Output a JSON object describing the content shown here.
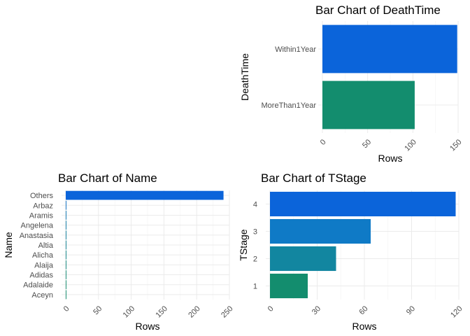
{
  "chart_data": [
    {
      "type": "bar",
      "orientation": "horizontal",
      "title": "Bar Chart of DeathTime",
      "xlabel": "Rows",
      "ylabel": "DeathTime",
      "categories": [
        "MoreThan1Year",
        "Within1Year"
      ],
      "values": [
        102,
        149
      ],
      "colors": [
        "#138D6E",
        "#0B64DA"
      ],
      "xlim": [
        0,
        150
      ],
      "xticks": [
        0,
        50,
        100,
        150
      ],
      "grid": true
    },
    {
      "type": "bar",
      "orientation": "horizontal",
      "title": "Bar Chart of Name",
      "xlabel": "Rows",
      "ylabel": "Name",
      "categories": [
        "Aceyn",
        "Adalaide",
        "Adidas",
        "Alaija",
        "Alicha",
        "Altia",
        "Anastasia",
        "Angelena",
        "Aramis",
        "Arbaz",
        "Others"
      ],
      "values": [
        1,
        1,
        1,
        1,
        1,
        1,
        1,
        1,
        1,
        1,
        241
      ],
      "colors": [
        "#138D6E",
        "#138D6E",
        "#138C75",
        "#13897F",
        "#128689",
        "#118393",
        "#11809E",
        "#107DA8",
        "#0F78B4",
        "#0E72C4",
        "#0B64DA"
      ],
      "xlim": [
        0,
        250
      ],
      "xticks": [
        0,
        50,
        100,
        150,
        200,
        250
      ],
      "grid": true
    },
    {
      "type": "bar",
      "orientation": "horizontal",
      "title": "Bar Chart of TStage",
      "xlabel": "Rows",
      "ylabel": "TStage",
      "categories": [
        "1",
        "2",
        "3",
        "4"
      ],
      "values": [
        24,
        42,
        64,
        118
      ],
      "colors": [
        "#138D6E",
        "#1286A0",
        "#0F7AC6",
        "#0B64DA"
      ],
      "xlim": [
        0,
        120
      ],
      "xticks": [
        0,
        30,
        60,
        90,
        120
      ],
      "grid": true
    }
  ]
}
